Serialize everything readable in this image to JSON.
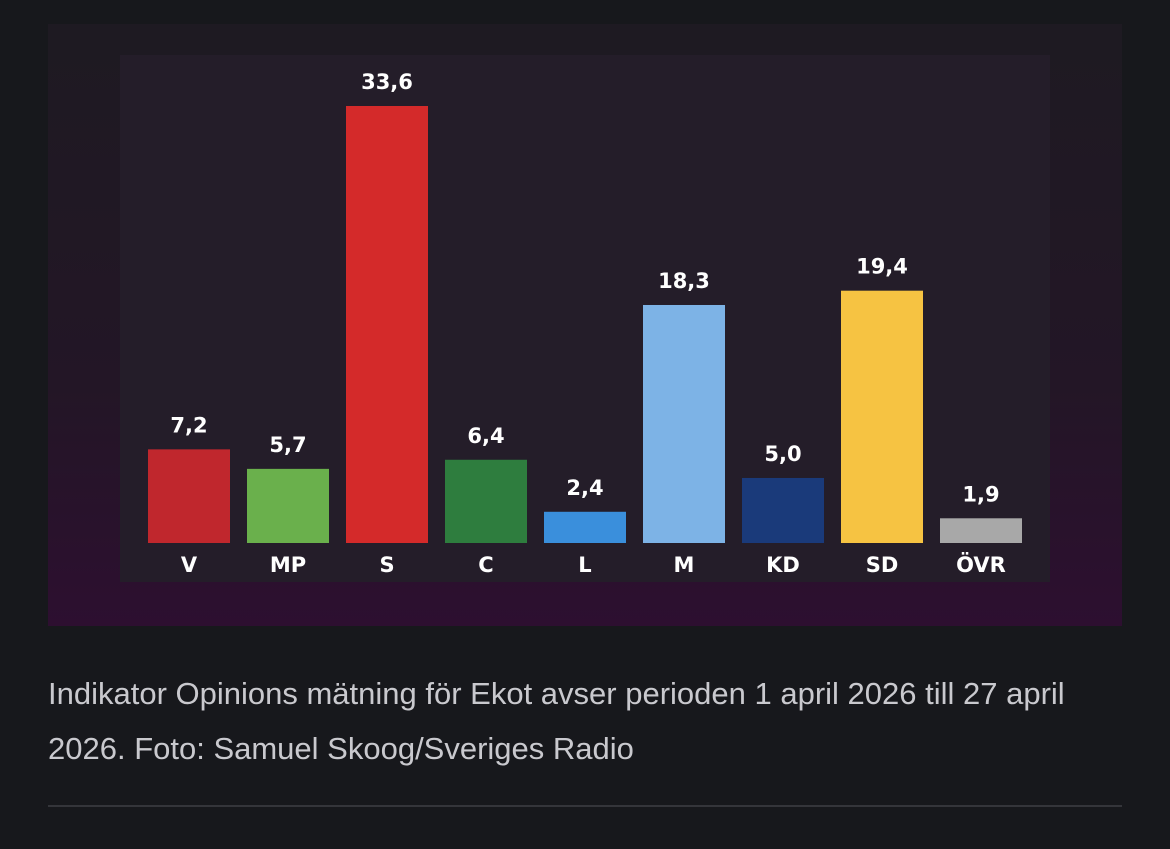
{
  "chart_data": {
    "type": "bar",
    "categories": [
      "V",
      "MP",
      "S",
      "C",
      "L",
      "M",
      "KD",
      "SD",
      "ÖVR"
    ],
    "values": [
      7.2,
      5.7,
      33.6,
      6.4,
      2.4,
      18.3,
      5.0,
      19.4,
      1.9
    ],
    "value_labels": [
      "7,2",
      "5,7",
      "33,6",
      "6,4",
      "2,4",
      "18,3",
      "5,0",
      "19,4",
      "1,9"
    ],
    "colors": [
      "#c0272d",
      "#6ab04c",
      "#d42a2a",
      "#2e7d3e",
      "#3a8fdc",
      "#7db3e6",
      "#1a3a7a",
      "#f6c342",
      "#a8a8a8"
    ]
  },
  "caption": "Indikator Opinions mätning för Ekot avser perioden 1 april 2026 till 27 april 2026. Foto: Samuel Skoog/Sveriges Radio"
}
